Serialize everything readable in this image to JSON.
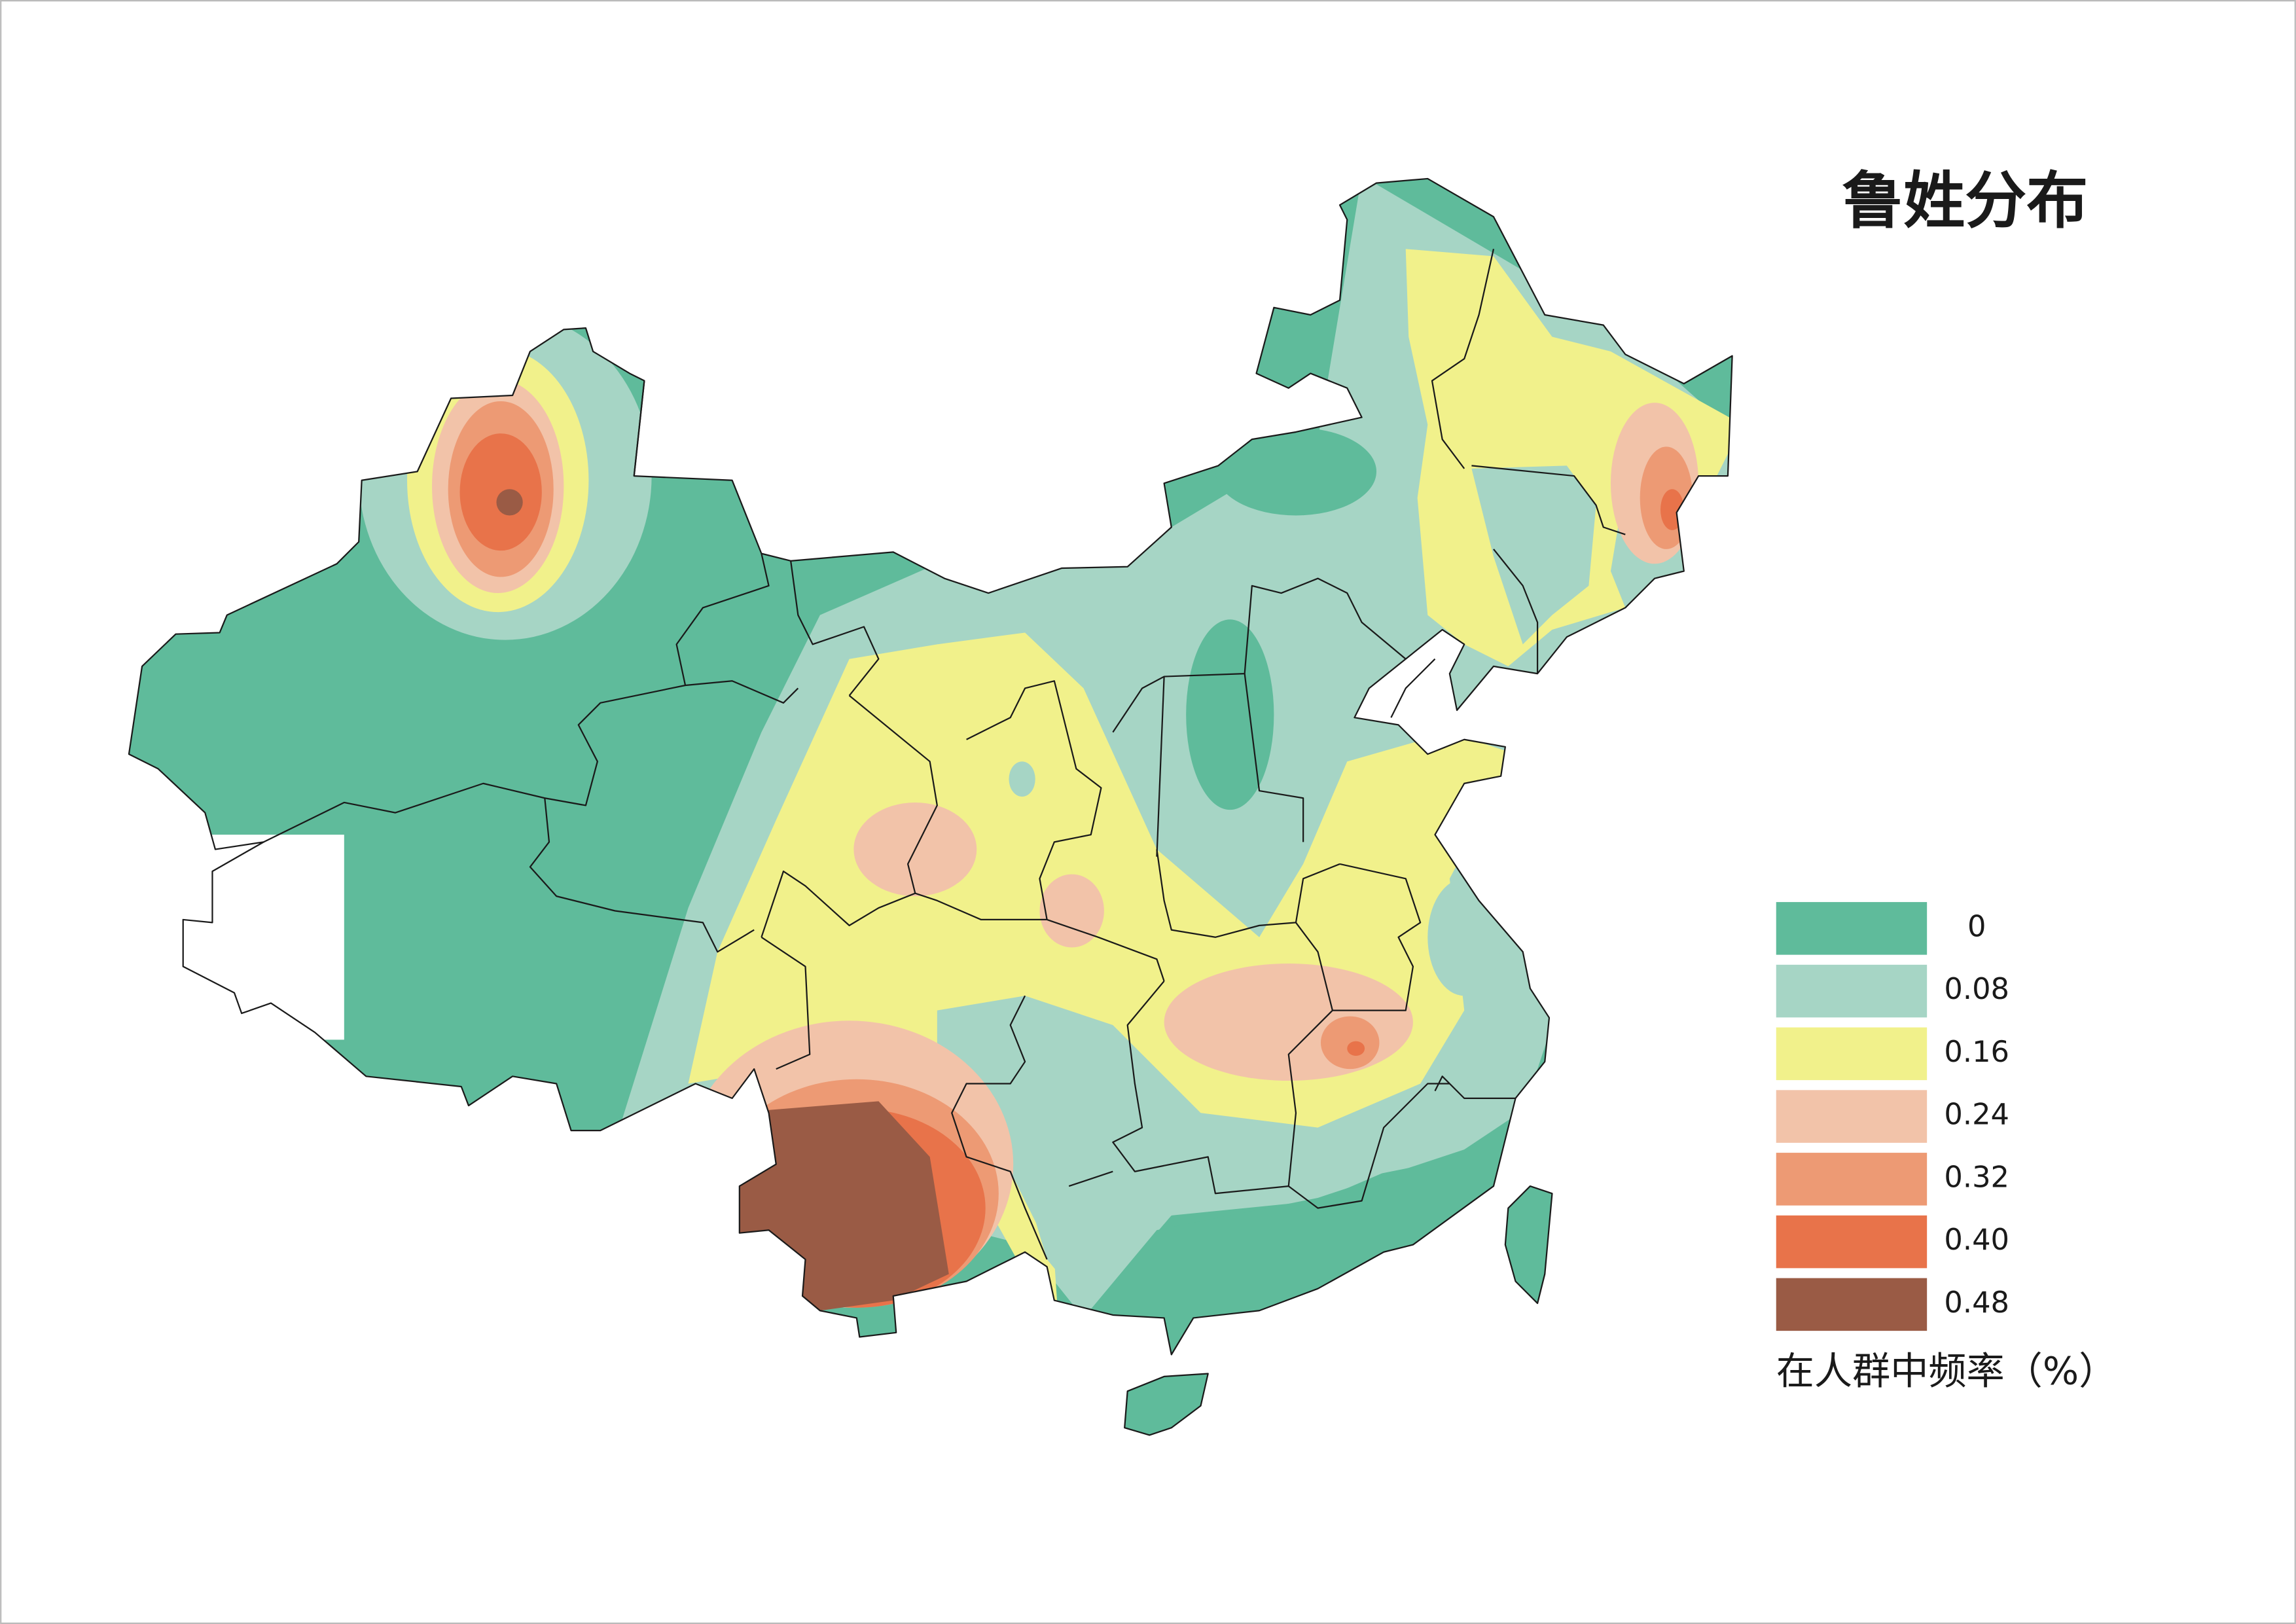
{
  "title": "鲁姓分布",
  "legend": {
    "items": [
      {
        "label": "0",
        "color": "#5fbb9b"
      },
      {
        "label": "0.08",
        "color": "#a6d5c5"
      },
      {
        "label": "0.16",
        "color": "#f1f18b"
      },
      {
        "label": "0.24",
        "color": "#f2c3a9"
      },
      {
        "label": "0.32",
        "color": "#ed9a74"
      },
      {
        "label": "0.40",
        "color": "#e8734a"
      },
      {
        "label": "0.48",
        "color": "#9a5b45"
      }
    ],
    "caption": "在人群中频率（%）"
  }
}
